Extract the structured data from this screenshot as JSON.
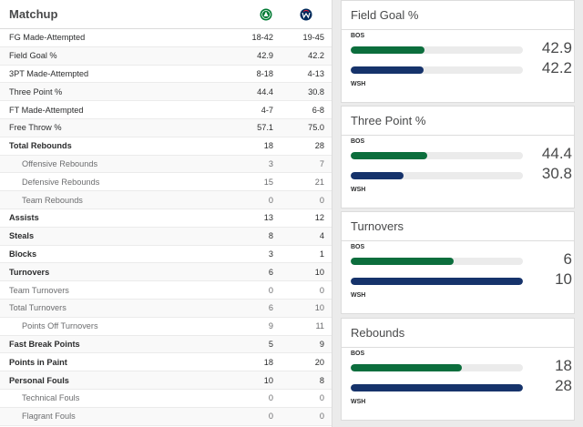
{
  "matchup": {
    "title": "Matchup",
    "teams": [
      {
        "abbr": "BOS",
        "logo_icon": "celtics-logo-icon",
        "color": "#007a33"
      },
      {
        "abbr": "WSH",
        "logo_icon": "wizards-logo-icon",
        "color": "#002b5c"
      }
    ],
    "rows": [
      {
        "label": "FG Made-Attempted",
        "bos": "18-42",
        "wsh": "19-45",
        "style": "main"
      },
      {
        "label": "Field Goal %",
        "bos": "42.9",
        "wsh": "42.2",
        "style": "main"
      },
      {
        "label": "3PT Made-Attempted",
        "bos": "8-18",
        "wsh": "4-13",
        "style": "main"
      },
      {
        "label": "Three Point %",
        "bos": "44.4",
        "wsh": "30.8",
        "style": "main"
      },
      {
        "label": "FT Made-Attempted",
        "bos": "4-7",
        "wsh": "6-8",
        "style": "main"
      },
      {
        "label": "Free Throw %",
        "bos": "57.1",
        "wsh": "75.0",
        "style": "main"
      },
      {
        "label": "Total Rebounds",
        "bos": "18",
        "wsh": "28",
        "style": "bold"
      },
      {
        "label": "Offensive Rebounds",
        "bos": "3",
        "wsh": "7",
        "style": "indent"
      },
      {
        "label": "Defensive Rebounds",
        "bos": "15",
        "wsh": "21",
        "style": "indent"
      },
      {
        "label": "Team Rebounds",
        "bos": "0",
        "wsh": "0",
        "style": "indent"
      },
      {
        "label": "Assists",
        "bos": "13",
        "wsh": "12",
        "style": "bold"
      },
      {
        "label": "Steals",
        "bos": "8",
        "wsh": "4",
        "style": "bold"
      },
      {
        "label": "Blocks",
        "bos": "3",
        "wsh": "1",
        "style": "bold"
      },
      {
        "label": "Turnovers",
        "bos": "6",
        "wsh": "10",
        "style": "bold"
      },
      {
        "label": "Team Turnovers",
        "bos": "0",
        "wsh": "0",
        "style": "sub"
      },
      {
        "label": "Total Turnovers",
        "bos": "6",
        "wsh": "10",
        "style": "sub"
      },
      {
        "label": "Points Off Turnovers",
        "bos": "9",
        "wsh": "11",
        "style": "indent"
      },
      {
        "label": "Fast Break Points",
        "bos": "5",
        "wsh": "9",
        "style": "bold"
      },
      {
        "label": "Points in Paint",
        "bos": "18",
        "wsh": "20",
        "style": "bold"
      },
      {
        "label": "Personal Fouls",
        "bos": "10",
        "wsh": "8",
        "style": "bold"
      },
      {
        "label": "Technical Fouls",
        "bos": "0",
        "wsh": "0",
        "style": "indent"
      },
      {
        "label": "Flagrant Fouls",
        "bos": "0",
        "wsh": "0",
        "style": "indent"
      }
    ]
  },
  "cards": [
    {
      "title": "Field Goal %",
      "bos_label": "BOS",
      "wsh_label": "WSH",
      "bos_value": "42.9",
      "wsh_value": "42.2",
      "bos_fill": 0.429,
      "wsh_fill": 0.422
    },
    {
      "title": "Three Point %",
      "bos_label": "BOS",
      "wsh_label": "WSH",
      "bos_value": "44.4",
      "wsh_value": "30.8",
      "bos_fill": 0.444,
      "wsh_fill": 0.308
    },
    {
      "title": "Turnovers",
      "bos_label": "BOS",
      "wsh_label": "WSH",
      "bos_value": "6",
      "wsh_value": "10",
      "bos_fill": 0.6,
      "wsh_fill": 1.0
    },
    {
      "title": "Rebounds",
      "bos_label": "BOS",
      "wsh_label": "WSH",
      "bos_value": "18",
      "wsh_value": "28",
      "bos_fill": 0.643,
      "wsh_fill": 1.0
    }
  ],
  "colors": {
    "bos": "#0c6e3d",
    "wsh": "#16336b"
  }
}
